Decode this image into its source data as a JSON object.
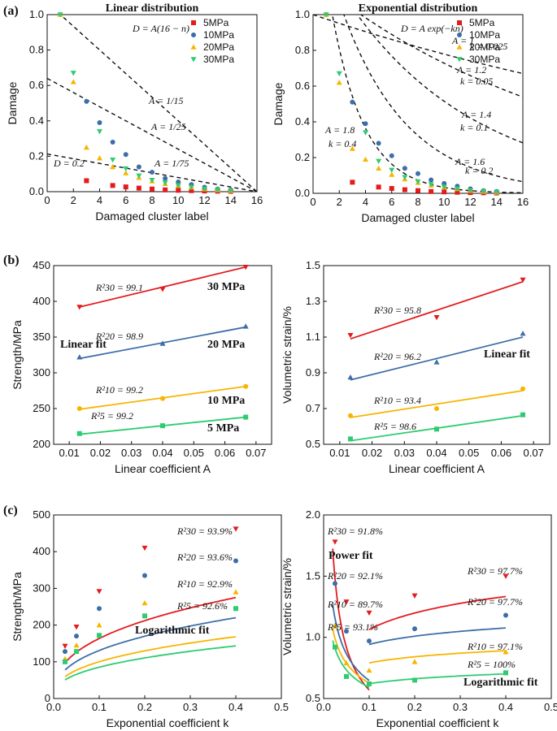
{
  "panel_labels": [
    "(a)",
    "(b)",
    "(c)"
  ],
  "colors": {
    "5MPa": "#e41a1c",
    "10MPa": "#3d6ea8",
    "20MPa": "#f7b500",
    "30MPa": "#2ecc71",
    "fit_red": "#e41a1c",
    "fit_blue": "#3d6ea8",
    "fit_yellow": "#f7b500",
    "fit_green": "#2ecc71"
  },
  "chart_data": [
    {
      "id": "a1",
      "type": "scatter",
      "title": "Linear distribution",
      "xlabel": "Damaged cluster label",
      "ylabel": "Damage",
      "xlim": [
        0,
        16
      ],
      "ylim": [
        0,
        1
      ],
      "xticks": [
        0,
        2,
        4,
        6,
        8,
        10,
        12,
        14,
        16
      ],
      "yticks": [
        0.0,
        0.2,
        0.4,
        0.6,
        0.8,
        1.0
      ],
      "xtick_labels": [
        "0",
        "2",
        "4",
        "6",
        "8",
        "10",
        "12",
        "14",
        "16"
      ],
      "ytick_labels": [
        "0.0",
        "0.2",
        "0.4",
        "0.6",
        "0.8",
        "1.0"
      ],
      "legend": [
        "5MPa",
        "10MPa",
        "20MPa",
        "30MPa"
      ],
      "series": [
        {
          "name": "5MPa",
          "marker": "square",
          "x": [
            3,
            5,
            6,
            7,
            8,
            9,
            10,
            11,
            12,
            13,
            14
          ],
          "y": [
            0.062,
            0.035,
            0.027,
            0.02,
            0.015,
            0.01,
            0.008,
            0.006,
            0.004,
            0.003,
            0.002
          ]
        },
        {
          "name": "10MPa",
          "marker": "circle",
          "x": [
            3,
            4,
            5,
            6,
            7,
            8,
            9,
            10,
            11,
            12,
            13,
            14
          ],
          "y": [
            0.51,
            0.39,
            0.28,
            0.21,
            0.14,
            0.11,
            0.075,
            0.055,
            0.04,
            0.025,
            0.015,
            0.01
          ]
        },
        {
          "name": "20MPa",
          "marker": "triangle-up",
          "x": [
            1,
            2,
            3,
            4,
            5,
            6,
            7,
            8,
            9,
            10,
            11,
            12,
            13,
            14
          ],
          "y": [
            1.0,
            0.62,
            0.25,
            0.19,
            0.14,
            0.105,
            0.08,
            0.06,
            0.045,
            0.035,
            0.025,
            0.015,
            0.01,
            0.006
          ]
        },
        {
          "name": "30MPa",
          "marker": "triangle-down",
          "x": [
            1,
            2,
            4,
            5,
            6,
            7,
            8,
            9,
            10,
            11,
            12,
            13,
            14
          ],
          "y": [
            1.0,
            0.67,
            0.34,
            0.18,
            0.13,
            0.09,
            0.065,
            0.05,
            0.035,
            0.025,
            0.015,
            0.01,
            0.006
          ]
        }
      ],
      "curves": [
        {
          "kind": "linear",
          "A": 0.0667,
          "label": "A = 1/15"
        },
        {
          "kind": "linear",
          "A": 0.04,
          "label": "A = 1/25"
        },
        {
          "kind": "linear",
          "A": 0.0133,
          "label": "A = 1/75"
        }
      ],
      "annotations": [
        "D = A(16 − n)",
        "A = 1/15",
        "A = 1/25",
        "A = 1/75",
        "D = 0.2"
      ]
    },
    {
      "id": "a2",
      "type": "scatter",
      "title": "Exponential distribution",
      "xlabel": "Damaged cluster label",
      "ylabel": "Damage",
      "xlim": [
        0,
        16
      ],
      "ylim": [
        0,
        1
      ],
      "xticks": [
        0,
        2,
        4,
        6,
        8,
        10,
        12,
        14,
        16
      ],
      "yticks": [
        0.0,
        0.2,
        0.4,
        0.6,
        0.8,
        1.0
      ],
      "xtick_labels": [
        "0",
        "2",
        "4",
        "6",
        "8",
        "10",
        "12",
        "14",
        "16"
      ],
      "ytick_labels": [
        "0.0",
        "0.2",
        "0.4",
        "0.6",
        "0.8",
        "1.0"
      ],
      "legend": [
        "5MPa",
        "10MPa",
        "20MPa",
        "30MPa"
      ],
      "series": [
        {
          "name": "5MPa",
          "marker": "square",
          "x": [
            3,
            5,
            6,
            7,
            8,
            9,
            10,
            11,
            12,
            13,
            14
          ],
          "y": [
            0.062,
            0.035,
            0.027,
            0.02,
            0.015,
            0.01,
            0.008,
            0.006,
            0.004,
            0.003,
            0.002
          ]
        },
        {
          "name": "10MPa",
          "marker": "circle",
          "x": [
            3,
            4,
            5,
            6,
            7,
            8,
            9,
            10,
            11,
            12,
            13,
            14
          ],
          "y": [
            0.51,
            0.39,
            0.28,
            0.21,
            0.14,
            0.11,
            0.075,
            0.055,
            0.04,
            0.025,
            0.015,
            0.01
          ]
        },
        {
          "name": "20MPa",
          "marker": "triangle-up",
          "x": [
            1,
            2,
            3,
            4,
            5,
            6,
            7,
            8,
            9,
            10,
            11,
            12,
            13,
            14
          ],
          "y": [
            1.0,
            0.62,
            0.25,
            0.19,
            0.14,
            0.105,
            0.08,
            0.06,
            0.045,
            0.035,
            0.025,
            0.015,
            0.01,
            0.006
          ]
        },
        {
          "name": "30MPa",
          "marker": "triangle-down",
          "x": [
            1,
            2,
            4,
            5,
            6,
            7,
            8,
            9,
            10,
            11,
            12,
            13,
            14
          ],
          "y": [
            1.0,
            0.67,
            0.34,
            0.18,
            0.13,
            0.09,
            0.065,
            0.05,
            0.035,
            0.025,
            0.015,
            0.01,
            0.006
          ]
        }
      ],
      "curves": [
        {
          "kind": "exp",
          "A": 1.0,
          "k": 0.025
        },
        {
          "kind": "exp",
          "A": 1.2,
          "k": 0.05
        },
        {
          "kind": "exp",
          "A": 1.4,
          "k": 0.1
        },
        {
          "kind": "exp",
          "A": 1.6,
          "k": 0.2
        },
        {
          "kind": "exp",
          "A": 1.8,
          "k": 0.4
        }
      ],
      "annotations": [
        "D = A exp(−kn)",
        "A = 1",
        "k = 0.025",
        "A = 1.2",
        "k = 0.05",
        "A = 1.4",
        "k = 0.1",
        "A = 1.6",
        "k = 0.2",
        "A = 1.8",
        "k = 0.4"
      ]
    },
    {
      "id": "b1",
      "type": "line",
      "xlabel": "Linear coefficient A",
      "ylabel": "Strength/MPa",
      "xlim": [
        0.005,
        0.075
      ],
      "ylim": [
        200,
        450
      ],
      "xticks": [
        0.01,
        0.02,
        0.03,
        0.04,
        0.05,
        0.06,
        0.07
      ],
      "yticks": [
        200,
        250,
        300,
        350,
        400,
        450
      ],
      "xtick_labels": [
        "0.01",
        "0.02",
        "0.03",
        "0.04",
        "0.05",
        "0.06",
        "0.07"
      ],
      "ytick_labels": [
        "200",
        "250",
        "300",
        "350",
        "400",
        "450"
      ],
      "series": [
        {
          "name": "30 MPa",
          "marker": "triangle-down",
          "color": "#e41a1c",
          "x": [
            0.0133,
            0.04,
            0.0667
          ],
          "y": [
            392,
            417,
            448
          ],
          "fit": [
            392,
            448
          ],
          "r2": "R²30 = 99.1"
        },
        {
          "name": "20 MPa",
          "marker": "triangle-up",
          "color": "#3d6ea8",
          "x": [
            0.0133,
            0.04,
            0.0667
          ],
          "y": [
            322,
            341,
            365
          ],
          "fit": [
            320,
            364
          ],
          "r2": "R²20 = 98.9"
        },
        {
          "name": "10 MPa",
          "marker": "circle",
          "color": "#f7b500",
          "x": [
            0.0133,
            0.04,
            0.0667
          ],
          "y": [
            250,
            264,
            281
          ],
          "fit": [
            249,
            281
          ],
          "r2": "R²10 = 99.2"
        },
        {
          "name": "5 MPa",
          "marker": "square",
          "color": "#2ecc71",
          "x": [
            0.0133,
            0.04,
            0.0667
          ],
          "y": [
            215,
            226,
            238
          ],
          "fit": [
            214,
            238
          ],
          "r2": "R²5 = 99.2"
        }
      ],
      "annotations": [
        "30 MPa",
        "20 MPa",
        "10 MPa",
        "5 MPa",
        "Linear fit"
      ]
    },
    {
      "id": "b2",
      "type": "line",
      "xlabel": "Linear coefficient A",
      "ylabel": "Volumetric strain/%",
      "xlim": [
        0.005,
        0.075
      ],
      "ylim": [
        0.5,
        1.5
      ],
      "xticks": [
        0.01,
        0.02,
        0.03,
        0.04,
        0.05,
        0.06,
        0.07
      ],
      "yticks": [
        0.5,
        0.7,
        0.9,
        1.1,
        1.3,
        1.5
      ],
      "xtick_labels": [
        "0.01",
        "0.02",
        "0.03",
        "0.04",
        "0.05",
        "0.06",
        "0.07"
      ],
      "ytick_labels": [
        "0.5",
        "0.7",
        "0.9",
        "1.1",
        "1.3",
        "1.5"
      ],
      "series": [
        {
          "name": "30 MPa",
          "marker": "triangle-down",
          "color": "#e41a1c",
          "x": [
            0.0133,
            0.04,
            0.0667
          ],
          "y": [
            1.11,
            1.21,
            1.42
          ],
          "fit": [
            1.09,
            1.41
          ],
          "r2": "R²30 = 95.8"
        },
        {
          "name": "20 MPa",
          "marker": "triangle-up",
          "color": "#3d6ea8",
          "x": [
            0.0133,
            0.04,
            0.0667
          ],
          "y": [
            0.875,
            0.96,
            1.12
          ],
          "fit": [
            0.86,
            1.1
          ],
          "r2": "R²20 = 96.2"
        },
        {
          "name": "10 MPa",
          "marker": "circle",
          "color": "#f7b500",
          "x": [
            0.0133,
            0.04,
            0.0667
          ],
          "y": [
            0.66,
            0.7,
            0.81
          ],
          "fit": [
            0.65,
            0.8
          ],
          "r2": "R²10 = 93.4"
        },
        {
          "name": "5 MPa",
          "marker": "square",
          "color": "#2ecc71",
          "x": [
            0.0133,
            0.04,
            0.0667
          ],
          "y": [
            0.53,
            0.585,
            0.665
          ],
          "fit": [
            0.52,
            0.66
          ],
          "r2": "R²5 = 98.6"
        }
      ],
      "annotations": [
        "Linear fit"
      ]
    },
    {
      "id": "c1",
      "type": "line",
      "xlabel": "Exponential coefficient k",
      "ylabel": "Strength/MPa",
      "xlim": [
        0,
        0.5
      ],
      "ylim": [
        0,
        500
      ],
      "xticks": [
        0,
        0.1,
        0.2,
        0.3,
        0.4,
        0.5
      ],
      "yticks": [
        0,
        100,
        200,
        300,
        400,
        500
      ],
      "xtick_labels": [
        "0.0",
        "0.1",
        "0.2",
        "0.3",
        "0.4",
        "0.5"
      ],
      "ytick_labels": [
        "0",
        "100",
        "200",
        "300",
        "400",
        "500"
      ],
      "series": [
        {
          "name": "30 MPa",
          "marker": "triangle-down",
          "color": "#e41a1c",
          "x": [
            0.025,
            0.05,
            0.1,
            0.2,
            0.4
          ],
          "y": [
            143,
            195,
            292,
            410,
            462
          ],
          "fit_a": 165,
          "fit_b": 0.375,
          "r2": "R²30 = 93.9%"
        },
        {
          "name": "20 MPa",
          "marker": "circle",
          "color": "#3d6ea8",
          "x": [
            0.025,
            0.05,
            0.1,
            0.2,
            0.4
          ],
          "y": [
            128,
            170,
            245,
            335,
            375
          ],
          "fit_a": 132,
          "fit_b": 0.375,
          "r2": "R²20 = 93.6%"
        },
        {
          "name": "10 MPa",
          "marker": "triangle-up",
          "color": "#f7b500",
          "x": [
            0.025,
            0.05,
            0.1,
            0.2,
            0.4
          ],
          "y": [
            108,
            145,
            200,
            260,
            290
          ],
          "fit_a": 101,
          "fit_b": 0.375,
          "r2": "R²10 = 92.9%"
        },
        {
          "name": "5 MPa",
          "marker": "square",
          "color": "#2ecc71",
          "x": [
            0.025,
            0.05,
            0.1,
            0.2,
            0.4
          ],
          "y": [
            100,
            128,
            172,
            225,
            245
          ],
          "fit_a": 86,
          "fit_b": 0.375,
          "r2": "R²5 = 92.6%"
        }
      ],
      "annotations": [
        "Logarithmic fit"
      ]
    },
    {
      "id": "c2",
      "type": "line",
      "xlabel": "Exponential coefficient k",
      "ylabel": "Volumetric strain/%",
      "xlim": [
        0,
        0.5
      ],
      "ylim": [
        0.5,
        2.0
      ],
      "xticks": [
        0,
        0.1,
        0.2,
        0.3,
        0.4,
        0.5
      ],
      "yticks": [
        0.5,
        1.0,
        1.5,
        2.0
      ],
      "xtick_labels": [
        "0.0",
        "0.1",
        "0.2",
        "0.3",
        "0.4",
        "0.5"
      ],
      "ytick_labels": [
        "0.5",
        "1.0",
        "1.5",
        "2.0"
      ],
      "series": [
        {
          "name": "30 MPa",
          "marker": "triangle-down",
          "color": "#e41a1c",
          "x": [
            0.025,
            0.05,
            0.1,
            0.2,
            0.4
          ],
          "y": [
            1.78,
            1.29,
            1.2,
            1.34,
            1.5
          ],
          "power": [
            0.1168,
            -0.6883
          ],
          "log": [
            1.512,
            0.1947
          ],
          "r2_power": "R²30 = 91.8%",
          "r2_log": "R²30 = 97.7%"
        },
        {
          "name": "20 MPa",
          "marker": "circle",
          "color": "#3d6ea8",
          "x": [
            0.025,
            0.05,
            0.1,
            0.2,
            0.4
          ],
          "y": [
            1.44,
            1.05,
            0.97,
            1.07,
            1.18
          ],
          "power": [
            0.2474,
            -0.4178
          ],
          "log": [
            1.166,
            0.0975
          ],
          "r2_power": "R²20 = 92.1%",
          "r2_log": "R²20 = 97.7%"
        },
        {
          "name": "10 MPa",
          "marker": "triangle-up",
          "color": "#f7b500",
          "x": [
            0.025,
            0.05,
            0.1,
            0.2,
            0.4
          ],
          "y": [
            1.09,
            0.79,
            0.73,
            0.8,
            0.88
          ],
          "power": [
            0.2933,
            -0.33
          ],
          "log": [
            0.957,
            0.0721
          ],
          "r2_power": "R²10 = 89.7%",
          "r2_log": "R²10 = 97.1%"
        },
        {
          "name": "5 MPa",
          "marker": "square",
          "color": "#2ecc71",
          "x": [
            0.025,
            0.05,
            0.1,
            0.2,
            0.4
          ],
          "y": [
            0.92,
            0.68,
            0.62,
            0.65,
            0.71
          ],
          "power": [
            0.2897,
            -0.31
          ],
          "log": [
            0.754,
            0.0577
          ],
          "r2_power": "R²5 = 93.1%",
          "r2_log": "R²5 = 100%"
        }
      ],
      "annotations": [
        "Power fit",
        "Logarithmic fit"
      ]
    }
  ]
}
